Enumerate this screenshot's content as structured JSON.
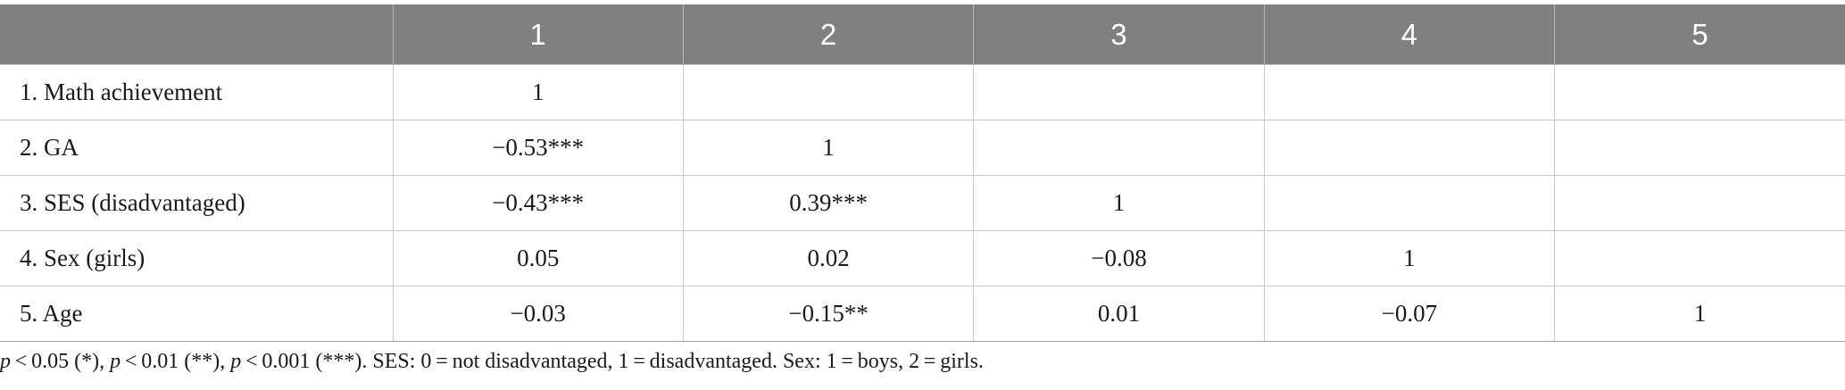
{
  "table": {
    "headers": [
      "",
      "1",
      "2",
      "3",
      "4",
      "5"
    ],
    "rows": [
      {
        "label": "1. Math achievement",
        "cells": [
          "1",
          "",
          "",
          "",
          ""
        ]
      },
      {
        "label": "2. GA",
        "cells": [
          "−0.53***",
          "1",
          "",
          "",
          ""
        ]
      },
      {
        "label": "3. SES (disadvantaged)",
        "cells": [
          "−0.43***",
          "0.39***",
          "1",
          "",
          ""
        ]
      },
      {
        "label": "4. Sex (girls)",
        "cells": [
          "0.05",
          "0.02",
          "−0.08",
          "1",
          ""
        ]
      },
      {
        "label": "5. Age",
        "cells": [
          "−0.03",
          "−0.15**",
          "0.01",
          "−0.07",
          "1"
        ]
      }
    ]
  },
  "footnote": {
    "p": "p",
    "part1": " < 0.05 (*), ",
    "part2": " < 0.01 (**), ",
    "part3": " < 0.001 (***). SES: 0 = not disadvantaged, 1 = disadvantaged. Sex: 1 = boys, 2 = girls."
  },
  "colors": {
    "header_bg": "#808080",
    "header_text": "#ffffff",
    "grid": "#c8c8c8"
  }
}
